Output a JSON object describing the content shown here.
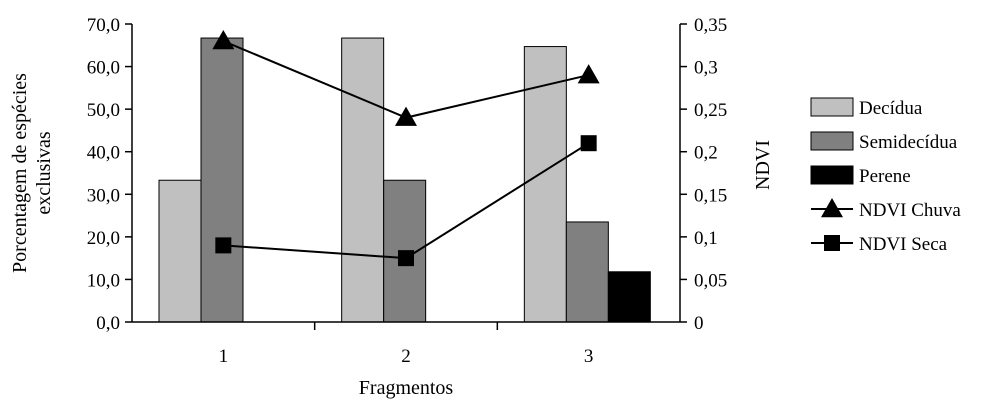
{
  "chart_data": {
    "type": "bar",
    "categories": [
      "1",
      "2",
      "3"
    ],
    "xlabel": "Fragmentos",
    "ylabel_lines": [
      "Porcentagem de espécies",
      "exclusivas"
    ],
    "y2label": "NDVI",
    "ylim": [
      0,
      70
    ],
    "y2lim": [
      0,
      0.35
    ],
    "yticks": [
      "0,0",
      "10,0",
      "20,0",
      "30,0",
      "40,0",
      "50,0",
      "60,0",
      "70,0"
    ],
    "y2ticks": [
      "0",
      "0,05",
      "0,1",
      "0,15",
      "0,2",
      "0,25",
      "0,3",
      "0,35"
    ],
    "bar_series": [
      {
        "name": "Decídua",
        "color": "#c0c0c0",
        "values": [
          33.3,
          66.7,
          64.7
        ]
      },
      {
        "name": "Semidecídua",
        "color": "#808080",
        "values": [
          66.7,
          33.3,
          23.5
        ]
      },
      {
        "name": "Perene",
        "color": "#000000",
        "values": [
          0,
          0,
          11.8
        ]
      }
    ],
    "line_series": [
      {
        "name": "NDVI Chuva",
        "marker": "triangle",
        "axis": "right",
        "values": [
          0.33,
          0.24,
          0.29
        ]
      },
      {
        "name": "NDVI Seca",
        "marker": "square",
        "axis": "right",
        "values": [
          0.09,
          0.075,
          0.21
        ]
      }
    ],
    "legend_position": "right",
    "grid": false
  }
}
